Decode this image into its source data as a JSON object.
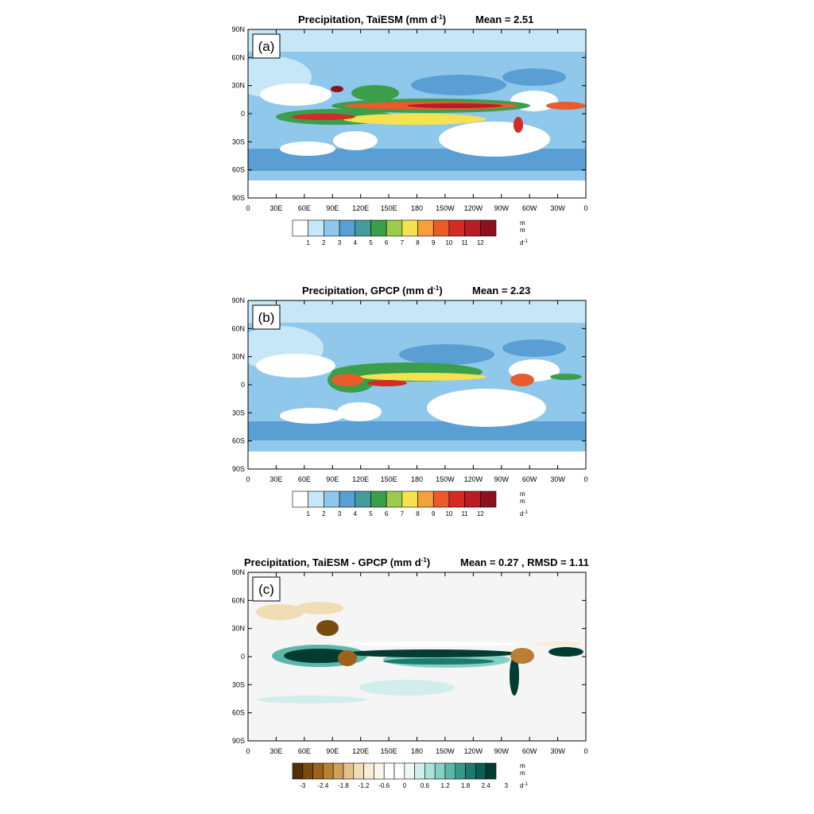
{
  "chart_data": [
    {
      "type": "heatmap",
      "panel_label": "(a)",
      "title": "Precipitation, TaiESM (mm d",
      "title_sup": "-1",
      "title_close": ")",
      "stat": "Mean = 2.51",
      "x_ticks": [
        "0",
        "30E",
        "60E",
        "90E",
        "120E",
        "150E",
        "180",
        "150W",
        "120W",
        "90W",
        "60W",
        "30W",
        "0"
      ],
      "y_ticks": [
        "90N",
        "60N",
        "30N",
        "0",
        "30S",
        "60S",
        "90S"
      ],
      "colorbar": {
        "colors": [
          "#ffffff",
          "#c6e7f7",
          "#8fc8ea",
          "#5a9fd3",
          "#459b9b",
          "#3a9e4a",
          "#9ccc4e",
          "#f6e150",
          "#f5a03a",
          "#ea5b2c",
          "#d42b25",
          "#b81c26",
          "#8c1020"
        ],
        "labels": [
          "1",
          "2",
          "3",
          "4",
          "5",
          "6",
          "7",
          "8",
          "9",
          "10",
          "11",
          "12"
        ],
        "unit": [
          "m",
          "m",
          "d",
          "-1"
        ]
      }
    },
    {
      "type": "heatmap",
      "panel_label": "(b)",
      "title": "Precipitation, GPCP (mm d",
      "title_sup": "-1",
      "title_close": ")",
      "stat": "Mean = 2.23",
      "x_ticks": [
        "0",
        "30E",
        "60E",
        "90E",
        "120E",
        "150E",
        "180",
        "150W",
        "120W",
        "90W",
        "60W",
        "30W",
        "0"
      ],
      "y_ticks": [
        "90N",
        "60N",
        "30N",
        "0",
        "30S",
        "60S",
        "90S"
      ],
      "colorbar": {
        "colors": [
          "#ffffff",
          "#c6e7f7",
          "#8fc8ea",
          "#5a9fd3",
          "#459b9b",
          "#3a9e4a",
          "#9ccc4e",
          "#f6e150",
          "#f5a03a",
          "#ea5b2c",
          "#d42b25",
          "#b81c26",
          "#8c1020"
        ],
        "labels": [
          "1",
          "2",
          "3",
          "4",
          "5",
          "6",
          "7",
          "8",
          "9",
          "10",
          "11",
          "12"
        ],
        "unit": [
          "m",
          "m",
          "d",
          "-1"
        ]
      }
    },
    {
      "type": "heatmap",
      "panel_label": "(c)",
      "title": "Precipitation, TaiESM - GPCP (mm d",
      "title_sup": "-1",
      "title_close": ")",
      "stat": "Mean = 0.27 , RMSD = 1.11",
      "x_ticks": [
        "0",
        "30E",
        "60E",
        "90E",
        "120E",
        "150E",
        "180",
        "150W",
        "120W",
        "90W",
        "60W",
        "30W",
        "0"
      ],
      "y_ticks": [
        "90N",
        "60N",
        "30N",
        "0",
        "30S",
        "60S",
        "90S"
      ],
      "colorbar": {
        "colors": [
          "#543005",
          "#7a4a0f",
          "#9c6219",
          "#b97f32",
          "#cfa05a",
          "#e2c28a",
          "#f0ddb6",
          "#f7ecd6",
          "#fbf6ee",
          "#ffffff",
          "#ffffff",
          "#eef8f6",
          "#d2eeea",
          "#ade0d8",
          "#86cfc4",
          "#5cb7aa",
          "#36998c",
          "#1c7b6f",
          "#0b5e53",
          "#003c30"
        ],
        "labels": [
          "-3",
          "-2.4",
          "-1.8",
          "-1.2",
          "-0.6",
          "0",
          "0.6",
          "1.2",
          "1.8",
          "2.4",
          "3"
        ],
        "unit": [
          "m",
          "m",
          "d",
          "-1"
        ]
      }
    }
  ]
}
